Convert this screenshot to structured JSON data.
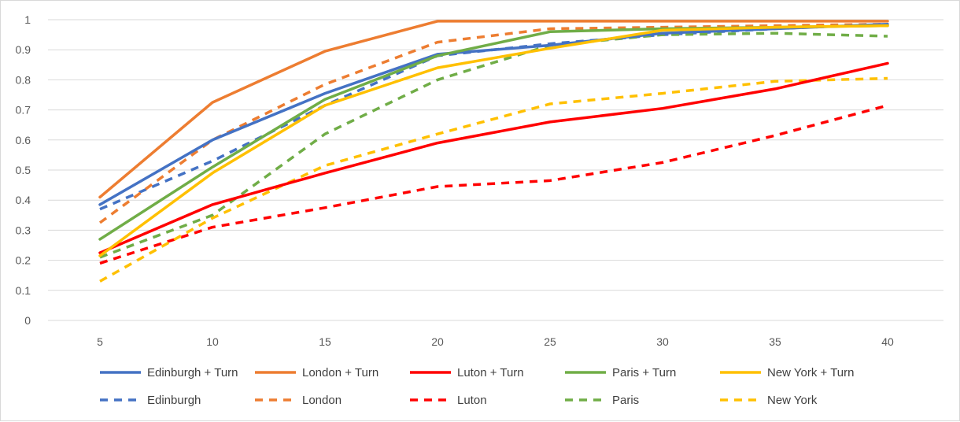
{
  "chart_data": {
    "type": "line",
    "title": "",
    "xlabel": "",
    "ylabel": "",
    "x": [
      5,
      10,
      15,
      20,
      25,
      30,
      35,
      40
    ],
    "ylim": [
      0,
      1
    ],
    "yticks": [
      "0",
      "0.1",
      "0.2",
      "0.3",
      "0.4",
      "0.5",
      "0.6",
      "0.7",
      "0.8",
      "0.9",
      "1"
    ],
    "xticks": [
      "5",
      "10",
      "15",
      "20",
      "25",
      "30",
      "35",
      "40"
    ],
    "grid": true,
    "legend_position": "bottom",
    "series": [
      {
        "name": "Edinburgh + Turn",
        "color": "#4472C4",
        "style": "solid",
        "values": [
          0.385,
          0.6,
          0.755,
          0.885,
          0.915,
          0.955,
          0.97,
          0.985
        ]
      },
      {
        "name": "London + Turn",
        "color": "#ED7D31",
        "style": "solid",
        "values": [
          0.41,
          0.725,
          0.895,
          0.995,
          0.995,
          0.995,
          0.995,
          0.995
        ]
      },
      {
        "name": "Luton + Turn",
        "color": "#FF0000",
        "style": "solid",
        "values": [
          0.225,
          0.385,
          0.49,
          0.59,
          0.66,
          0.705,
          0.77,
          0.855
        ]
      },
      {
        "name": "Paris + Turn",
        "color": "#70AD47",
        "style": "solid",
        "values": [
          0.27,
          0.51,
          0.735,
          0.88,
          0.96,
          0.97,
          0.975,
          0.98
        ]
      },
      {
        "name": "New York + Turn",
        "color": "#FFC000",
        "style": "solid",
        "values": [
          0.215,
          0.49,
          0.715,
          0.84,
          0.905,
          0.965,
          0.975,
          0.98
        ]
      },
      {
        "name": "Edinburgh",
        "color": "#4472C4",
        "style": "dashed",
        "values": [
          0.37,
          0.53,
          0.715,
          0.88,
          0.92,
          0.95,
          0.97,
          0.985
        ]
      },
      {
        "name": "London",
        "color": "#ED7D31",
        "style": "dashed",
        "values": [
          0.325,
          0.6,
          0.785,
          0.925,
          0.97,
          0.975,
          0.98,
          0.985
        ]
      },
      {
        "name": "Luton",
        "color": "#FF0000",
        "style": "dashed",
        "values": [
          0.19,
          0.31,
          0.375,
          0.445,
          0.465,
          0.525,
          0.615,
          0.715
        ]
      },
      {
        "name": "Paris",
        "color": "#70AD47",
        "style": "dashed",
        "values": [
          0.21,
          0.35,
          0.62,
          0.8,
          0.915,
          0.95,
          0.955,
          0.945
        ]
      },
      {
        "name": "New York",
        "color": "#FFC000",
        "style": "dashed",
        "values": [
          0.13,
          0.34,
          0.515,
          0.62,
          0.72,
          0.755,
          0.795,
          0.805
        ]
      }
    ]
  }
}
